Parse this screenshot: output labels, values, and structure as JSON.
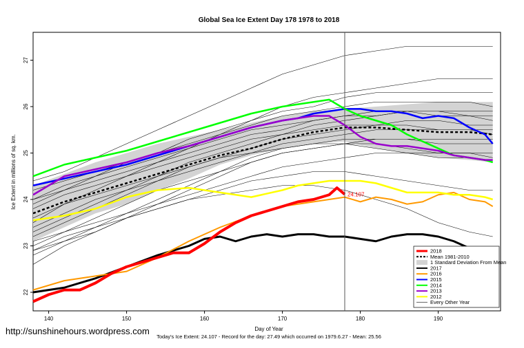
{
  "chart_data": {
    "type": "line",
    "title": "Global Sea Ice Extent Day 178 1978 to 2018",
    "xlabel": "Day of Year",
    "ylabel": "Ice Extent in millions of sq. km.",
    "xlim": [
      138,
      198
    ],
    "ylim": [
      21.6,
      27.6
    ],
    "xticks": [
      140,
      150,
      160,
      170,
      180,
      190
    ],
    "yticks": [
      22,
      23,
      24,
      25,
      26,
      27
    ],
    "grid": false,
    "legend_position": "bottom-right",
    "current_day": 178,
    "current_value_label": "24.107",
    "footer": "Today's Ice Extent: 24.107  - Record for the day: 27.49 which occurred on 1979.6.27  - Mean: 25.56",
    "watermark": "http://sunshinehours.wordpress.com",
    "band": {
      "name": "1 Standard Deviation From Mean",
      "x": [
        138,
        142,
        146,
        150,
        154,
        158,
        162,
        166,
        170,
        174,
        178,
        182,
        186,
        190,
        194,
        197
      ],
      "upper": [
        24.3,
        24.55,
        24.8,
        25.0,
        25.2,
        25.35,
        25.5,
        25.65,
        25.8,
        25.9,
        25.95,
        26.0,
        26.05,
        26.1,
        26.1,
        26.1
      ],
      "lower": [
        23.1,
        23.4,
        23.7,
        23.9,
        24.2,
        24.45,
        24.75,
        24.95,
        25.1,
        25.2,
        25.25,
        25.1,
        25.0,
        24.9,
        24.85,
        24.8
      ]
    },
    "series": [
      {
        "name": "2018",
        "color": "#ff0000",
        "dash": "",
        "width": 4,
        "x": [
          138,
          140,
          142,
          144,
          146,
          148,
          150,
          152,
          154,
          156,
          158,
          160,
          162,
          164,
          166,
          168,
          170,
          172,
          174,
          176,
          177,
          178
        ],
        "y": [
          21.8,
          21.95,
          22.05,
          22.05,
          22.2,
          22.4,
          22.55,
          22.65,
          22.75,
          22.85,
          22.85,
          23.05,
          23.3,
          23.5,
          23.65,
          23.75,
          23.85,
          23.95,
          24.0,
          24.1,
          24.25,
          24.11
        ]
      },
      {
        "name": "Mean 1981-2010",
        "color": "#000000",
        "dash": "4,3",
        "width": 2.5,
        "x": [
          138,
          142,
          146,
          150,
          154,
          158,
          162,
          166,
          170,
          174,
          178,
          182,
          186,
          190,
          194,
          197
        ],
        "y": [
          23.7,
          23.95,
          24.15,
          24.35,
          24.55,
          24.75,
          24.95,
          25.1,
          25.3,
          25.45,
          25.55,
          25.55,
          25.5,
          25.45,
          25.45,
          25.4
        ]
      },
      {
        "name": "2017",
        "color": "#000000",
        "dash": "",
        "width": 3,
        "x": [
          138,
          142,
          146,
          150,
          154,
          158,
          160,
          162,
          164,
          166,
          168,
          170,
          172,
          174,
          176,
          178,
          180,
          182,
          184,
          186,
          188,
          190,
          192,
          194,
          196,
          197
        ],
        "y": [
          22.0,
          22.1,
          22.3,
          22.55,
          22.8,
          23.0,
          23.15,
          23.2,
          23.1,
          23.2,
          23.25,
          23.2,
          23.25,
          23.25,
          23.2,
          23.2,
          23.15,
          23.1,
          23.2,
          23.25,
          23.25,
          23.2,
          23.1,
          22.95,
          22.8,
          22.8
        ]
      },
      {
        "name": "2016",
        "color": "#ff9900",
        "dash": "",
        "width": 2,
        "x": [
          138,
          142,
          146,
          150,
          154,
          158,
          162,
          166,
          170,
          174,
          178,
          180,
          182,
          184,
          186,
          188,
          190,
          192,
          194,
          196,
          197
        ],
        "y": [
          22.05,
          22.25,
          22.35,
          22.45,
          22.75,
          23.1,
          23.4,
          23.65,
          23.85,
          23.95,
          24.05,
          23.95,
          24.05,
          24.0,
          23.9,
          23.95,
          24.1,
          24.15,
          24.0,
          23.95,
          23.85
        ]
      },
      {
        "name": "2015",
        "color": "#0000ff",
        "dash": "",
        "width": 2.5,
        "x": [
          138,
          142,
          146,
          150,
          154,
          158,
          162,
          166,
          170,
          172,
          174,
          176,
          178,
          180,
          182,
          184,
          186,
          188,
          190,
          192,
          194,
          196,
          197
        ],
        "y": [
          24.3,
          24.45,
          24.6,
          24.75,
          24.95,
          25.15,
          25.35,
          25.55,
          25.7,
          25.75,
          25.85,
          25.9,
          25.95,
          25.95,
          25.9,
          25.9,
          25.85,
          25.75,
          25.8,
          25.75,
          25.55,
          25.4,
          25.2
        ]
      },
      {
        "name": "2014",
        "color": "#00ff00",
        "dash": "",
        "width": 2.5,
        "x": [
          138,
          142,
          146,
          150,
          154,
          158,
          162,
          166,
          170,
          172,
          174,
          176,
          178,
          180,
          182,
          184,
          186,
          188,
          190,
          192,
          194,
          196,
          197
        ],
        "y": [
          24.5,
          24.75,
          24.9,
          25.05,
          25.25,
          25.45,
          25.65,
          25.85,
          26.0,
          26.05,
          26.1,
          26.15,
          25.95,
          25.8,
          25.7,
          25.6,
          25.4,
          25.25,
          25.1,
          24.95,
          24.9,
          24.85,
          24.8
        ]
      },
      {
        "name": "2013",
        "color": "#9900cc",
        "dash": "",
        "width": 2.5,
        "x": [
          138,
          142,
          146,
          150,
          154,
          158,
          162,
          166,
          170,
          172,
          174,
          176,
          178,
          180,
          182,
          184,
          186,
          188,
          190,
          192,
          194,
          196,
          197
        ],
        "y": [
          24.1,
          24.5,
          24.65,
          24.8,
          25.0,
          25.15,
          25.35,
          25.55,
          25.7,
          25.75,
          25.8,
          25.8,
          25.6,
          25.35,
          25.2,
          25.15,
          25.15,
          25.1,
          25.05,
          24.95,
          24.9,
          24.85,
          24.85
        ]
      },
      {
        "name": "2012",
        "color": "#ffff00",
        "dash": "",
        "width": 2.5,
        "x": [
          138,
          142,
          146,
          150,
          154,
          158,
          162,
          166,
          170,
          172,
          174,
          176,
          178,
          180,
          182,
          184,
          186,
          188,
          190,
          192,
          194,
          196,
          197
        ],
        "y": [
          23.55,
          23.65,
          23.8,
          24.05,
          24.2,
          24.25,
          24.15,
          24.05,
          24.2,
          24.3,
          24.35,
          24.4,
          24.4,
          24.4,
          24.35,
          24.25,
          24.15,
          24.15,
          24.15,
          24.1,
          24.1,
          24.05,
          24.0
        ]
      }
    ],
    "other_years_name": "Every Other Year",
    "other_years_color": "#000000",
    "other_years": [
      {
        "y": [
          23.0,
          23.3,
          23.6,
          23.9,
          24.2,
          24.4,
          24.6,
          24.8,
          25.0,
          25.1,
          25.2,
          25.3,
          25.3,
          25.3,
          25.3,
          25.3
        ]
      },
      {
        "y": [
          23.4,
          23.7,
          24.0,
          24.2,
          24.4,
          24.7,
          24.9,
          25.1,
          25.3,
          25.4,
          25.5,
          25.6,
          25.6,
          25.5,
          25.5,
          25.5
        ]
      },
      {
        "y": [
          23.8,
          24.1,
          24.3,
          24.5,
          24.7,
          24.9,
          25.1,
          25.3,
          25.4,
          25.5,
          25.6,
          25.6,
          25.7,
          25.7,
          25.6,
          25.6
        ]
      },
      {
        "y": [
          22.9,
          23.1,
          23.3,
          23.6,
          23.9,
          24.1,
          24.3,
          24.5,
          24.7,
          24.8,
          24.9,
          25.0,
          25.0,
          25.0,
          25.0,
          25.0
        ]
      },
      {
        "y": [
          24.0,
          24.3,
          24.5,
          24.7,
          24.9,
          25.1,
          25.3,
          25.5,
          25.6,
          25.7,
          25.8,
          25.9,
          25.9,
          25.9,
          25.8,
          25.8
        ]
      },
      {
        "y": [
          23.5,
          23.9,
          24.2,
          24.5,
          24.8,
          25.0,
          25.2,
          25.4,
          25.5,
          25.7,
          25.8,
          25.8,
          25.9,
          25.8,
          25.8,
          25.7
        ]
      },
      {
        "y": [
          24.4,
          24.6,
          24.9,
          25.2,
          25.5,
          25.8,
          26.1,
          26.4,
          26.7,
          26.9,
          27.1,
          27.2,
          27.3,
          27.3,
          27.3,
          27.3
        ]
      },
      {
        "y": [
          23.2,
          23.5,
          23.8,
          24.1,
          24.4,
          24.6,
          24.8,
          25.0,
          25.2,
          25.3,
          25.4,
          25.5,
          25.5,
          25.5,
          25.5,
          25.4
        ]
      },
      {
        "y": [
          23.9,
          24.2,
          24.5,
          24.8,
          25.0,
          25.3,
          25.5,
          25.7,
          25.9,
          26.0,
          26.2,
          26.3,
          26.3,
          26.3,
          26.3,
          26.3
        ]
      },
      {
        "y": [
          22.6,
          23.0,
          23.3,
          23.6,
          23.8,
          24.0,
          24.2,
          24.4,
          24.5,
          24.6,
          24.6,
          24.5,
          24.4,
          24.3,
          24.2,
          24.2
        ]
      },
      {
        "y": [
          23.3,
          23.6,
          23.9,
          24.2,
          24.5,
          24.8,
          25.0,
          25.2,
          25.4,
          25.6,
          25.7,
          25.8,
          25.9,
          25.9,
          25.9,
          25.9
        ]
      },
      {
        "y": [
          24.2,
          24.4,
          24.6,
          24.8,
          25.0,
          25.2,
          25.4,
          25.6,
          25.8,
          25.9,
          26.0,
          26.1,
          26.1,
          26.1,
          26.1,
          26.0
        ]
      },
      {
        "y": [
          23.1,
          23.3,
          23.5,
          23.7,
          23.9,
          24.2,
          24.5,
          24.8,
          25.0,
          25.1,
          25.2,
          25.2,
          25.1,
          25.0,
          25.0,
          24.9
        ]
      },
      {
        "y": [
          22.8,
          23.1,
          23.4,
          23.7,
          24.0,
          24.3,
          24.6,
          24.9,
          25.1,
          25.2,
          25.3,
          25.3,
          25.3,
          25.2,
          25.2,
          25.2
        ]
      },
      {
        "y": [
          24.0,
          24.2,
          24.4,
          24.6,
          24.8,
          25.1,
          25.4,
          25.7,
          26.0,
          26.2,
          26.3,
          26.4,
          26.5,
          26.6,
          26.6,
          26.6
        ]
      },
      {
        "y": [
          23.6,
          23.9,
          24.1,
          24.3,
          24.5,
          24.7,
          24.9,
          25.0,
          25.1,
          25.2,
          25.2,
          25.1,
          25.0,
          24.9,
          24.9,
          24.8
        ]
      },
      {
        "y": [
          22.9,
          23.2,
          23.4,
          23.6,
          23.8,
          24.0,
          24.1,
          24.2,
          24.3,
          24.3,
          24.2,
          24.0,
          23.8,
          23.5,
          23.3,
          23.2
        ]
      }
    ]
  }
}
